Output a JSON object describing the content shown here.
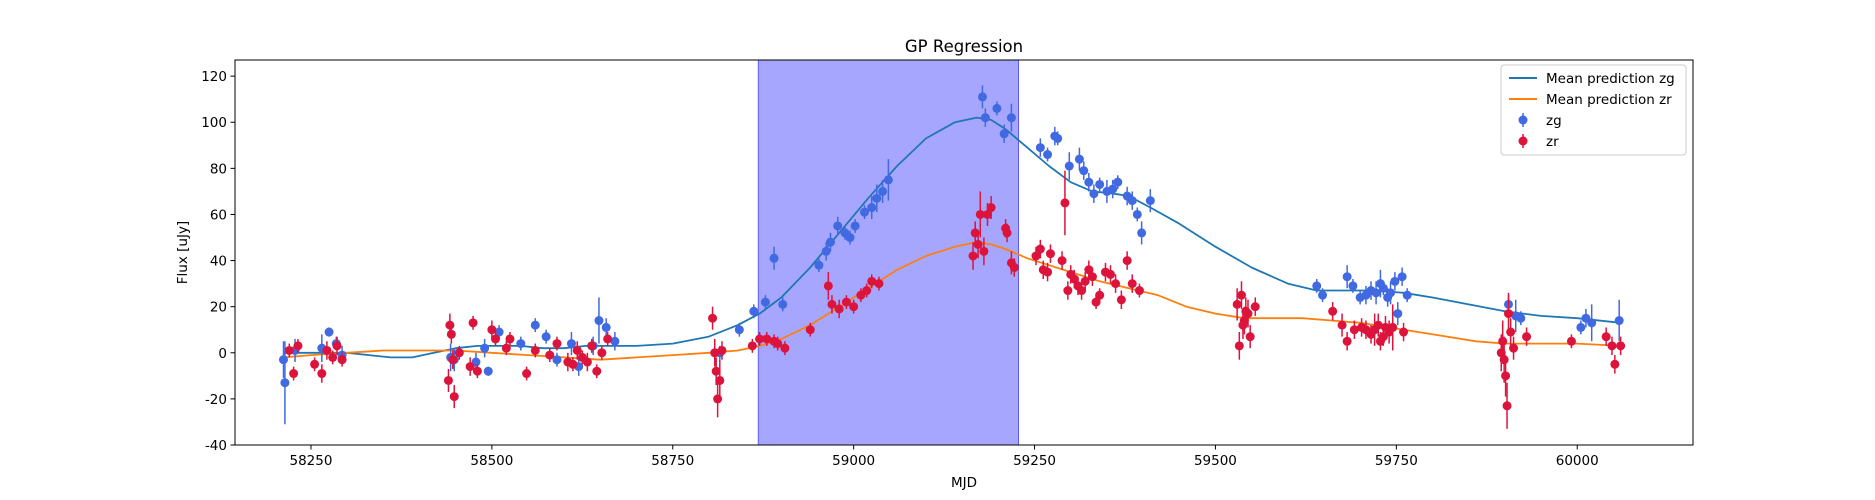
{
  "chart_data": {
    "type": "scatter",
    "title": "GP Regression",
    "xlabel": "MJD",
    "ylabel": "Flux [uJy]",
    "xlim": [
      58145,
      60160
    ],
    "ylim": [
      -40,
      127
    ],
    "xticks": [
      58250,
      58500,
      58750,
      59000,
      59250,
      59500,
      59750,
      60000
    ],
    "yticks": [
      -40,
      -20,
      0,
      20,
      40,
      60,
      80,
      100,
      120
    ],
    "grid": false,
    "legend_position": "top-right",
    "shaded_region": {
      "x0": 58868,
      "x1": 59228,
      "color": "#a6a6ff"
    },
    "colors": {
      "zg_line": "#1f77b4",
      "zr_line": "#ff7f0e",
      "zg_points": "#4169e1",
      "zr_points": "#dc143c"
    },
    "series": [
      {
        "name": "Mean prediction zg",
        "kind": "line",
        "x": [
          58212,
          58240,
          58270,
          58300,
          58330,
          58360,
          58390,
          58420,
          58450,
          58480,
          58510,
          58540,
          58570,
          58600,
          58630,
          58660,
          58700,
          58750,
          58800,
          58840,
          58870,
          58900,
          58940,
          58980,
          59020,
          59060,
          59100,
          59140,
          59170,
          59190,
          59210,
          59240,
          59270,
          59300,
          59330,
          59360,
          59380,
          59410,
          59450,
          59500,
          59550,
          59600,
          59640,
          59680,
          59720,
          59760,
          59800,
          59850,
          59900,
          59950,
          60000,
          60060
        ],
        "y": [
          0,
          0,
          0,
          0,
          -1,
          -2,
          -2,
          0,
          2,
          3,
          3,
          3,
          2,
          2,
          3,
          3,
          3,
          4,
          7,
          12,
          17,
          24,
          37,
          52,
          67,
          81,
          93,
          100,
          102,
          101,
          97,
          89,
          81,
          74,
          70,
          69,
          68,
          63,
          56,
          46,
          37,
          30,
          27,
          27,
          27,
          26,
          24,
          21,
          18,
          16,
          15,
          13
        ]
      },
      {
        "name": "Mean prediction zr",
        "kind": "line",
        "x": [
          58212,
          58250,
          58300,
          58350,
          58400,
          58450,
          58500,
          58550,
          58600,
          58650,
          58700,
          58750,
          58800,
          58840,
          58870,
          58900,
          58940,
          58980,
          59020,
          59060,
          59100,
          59140,
          59170,
          59190,
          59210,
          59240,
          59270,
          59300,
          59340,
          59380,
          59420,
          59460,
          59500,
          59540,
          59580,
          59620,
          59660,
          59700,
          59740,
          59780,
          59820,
          59860,
          59900,
          59950,
          60000,
          60060
        ],
        "y": [
          -2,
          -1,
          0,
          1,
          1,
          1,
          0,
          -1,
          -2,
          -3,
          -2,
          -1,
          0,
          1,
          3,
          6,
          12,
          20,
          28,
          36,
          42,
          46,
          48,
          47,
          45,
          41,
          38,
          35,
          31,
          28,
          25,
          20,
          17,
          15,
          15,
          15,
          14,
          13,
          11,
          9,
          7,
          5,
          4,
          4,
          4,
          3
        ]
      },
      {
        "name": "zg",
        "kind": "errorbar",
        "x": [
          58212,
          58214,
          58228,
          58265,
          58275,
          58285,
          58293,
          58443,
          58448,
          58478,
          58490,
          58495,
          58510,
          58540,
          58560,
          58575,
          58590,
          58610,
          58620,
          58640,
          58648,
          58658,
          58670,
          58815,
          58842,
          58862,
          58878,
          58890,
          58902,
          58952,
          58962,
          58968,
          58978,
          58988,
          58995,
          59002,
          59015,
          59025,
          59032,
          59040,
          59048,
          59178,
          59182,
          59198,
          59208,
          59218,
          59258,
          59268,
          59278,
          59282,
          59298,
          59312,
          59318,
          59325,
          59332,
          59340,
          59350,
          59358,
          59365,
          59378,
          59385,
          59392,
          59398,
          59410,
          59640,
          59648,
          59682,
          59690,
          59700,
          59708,
          59715,
          59722,
          59728,
          59732,
          59738,
          59742,
          59748,
          59752,
          59758,
          59765,
          59905,
          59915,
          59922,
          60005,
          60012,
          60020,
          60058
        ],
        "y": [
          -3,
          -13,
          1,
          2,
          9,
          4,
          -1,
          -2,
          -3,
          -4,
          2,
          -8,
          9,
          4,
          12,
          7,
          -3,
          4,
          -6,
          3,
          14,
          11,
          5,
          0,
          10,
          18,
          22,
          41,
          21,
          38,
          44,
          48,
          55,
          52,
          50,
          55,
          61,
          63,
          67,
          70,
          75,
          111,
          102,
          106,
          95,
          102,
          89,
          86,
          94,
          93,
          81,
          84,
          79,
          74,
          69,
          73,
          70,
          71,
          74,
          68,
          66,
          60,
          52,
          66,
          29,
          25,
          33,
          29,
          24,
          25,
          27,
          26,
          30,
          28,
          24,
          26,
          31,
          17,
          33,
          25,
          21,
          16,
          15,
          11,
          15,
          13,
          14
        ],
        "yerr": [
          8,
          18,
          5,
          6,
          2,
          3,
          4,
          6,
          5,
          4,
          4,
          2,
          3,
          3,
          3,
          3,
          3,
          5,
          4,
          4,
          10,
          4,
          4,
          3,
          3,
          3,
          3,
          5,
          3,
          3,
          4,
          4,
          4,
          3,
          3,
          3,
          3,
          5,
          6,
          5,
          9,
          5,
          4,
          3,
          4,
          6,
          4,
          3,
          4,
          3,
          6,
          5,
          4,
          4,
          4,
          3,
          5,
          4,
          3,
          4,
          4,
          3,
          5,
          5,
          3,
          3,
          5,
          3,
          3,
          4,
          4,
          5,
          6,
          3,
          4,
          5,
          4,
          5,
          4,
          3,
          4,
          7,
          3,
          3,
          4,
          8,
          9
        ]
      },
      {
        "name": "zr",
        "kind": "errorbar",
        "x": [
          58220,
          58226,
          58232,
          58255,
          58265,
          58272,
          58280,
          58286,
          58293,
          58440,
          58442,
          58444,
          58446,
          58448,
          58455,
          58470,
          58474,
          58480,
          58500,
          58505,
          58520,
          58525,
          58548,
          58560,
          58580,
          58590,
          58605,
          58612,
          58618,
          58625,
          58632,
          58638,
          58645,
          58652,
          58660,
          58805,
          58808,
          58810,
          58812,
          58815,
          58818,
          58860,
          58870,
          58880,
          58890,
          58895,
          58905,
          58940,
          58965,
          58970,
          58980,
          58990,
          59000,
          59010,
          59018,
          59025,
          59035,
          59165,
          59168,
          59172,
          59175,
          59180,
          59185,
          59190,
          59210,
          59212,
          59218,
          59222,
          59252,
          59258,
          59262,
          59268,
          59272,
          59288,
          59292,
          59296,
          59300,
          59305,
          59310,
          59315,
          59320,
          59325,
          59330,
          59335,
          59340,
          59348,
          59355,
          59362,
          59370,
          59378,
          59385,
          59395,
          59530,
          59533,
          59536,
          59538,
          59540,
          59542,
          59545,
          59548,
          59555,
          59662,
          59675,
          59682,
          59692,
          59702,
          59708,
          59715,
          59720,
          59725,
          59728,
          59732,
          59735,
          59740,
          59745,
          59760,
          59895,
          59897,
          59899,
          59901,
          59903,
          59905,
          59908,
          59912,
          59930,
          59992,
          60040,
          60048,
          60052,
          60060
        ],
        "y": [
          1,
          -9,
          3,
          -5,
          -9,
          1,
          -2,
          3,
          -3,
          -12,
          12,
          8,
          -3,
          -19,
          0,
          -6,
          13,
          -8,
          10,
          6,
          2,
          6,
          -9,
          1,
          -1,
          4,
          -4,
          -5,
          1,
          -2,
          -4,
          3,
          -8,
          0,
          6,
          15,
          0,
          -8,
          -20,
          -12,
          1,
          3,
          6,
          6,
          5,
          4,
          2,
          10,
          29,
          21,
          19,
          22,
          20,
          25,
          27,
          31,
          30,
          42,
          52,
          47,
          60,
          44,
          60,
          63,
          54,
          52,
          39,
          37,
          42,
          45,
          36,
          35,
          43,
          40,
          65,
          27,
          34,
          32,
          29,
          27,
          31,
          36,
          33,
          22,
          25,
          35,
          34,
          30,
          23,
          40,
          30,
          27,
          21,
          3,
          25,
          12,
          14,
          18,
          17,
          7,
          20,
          18,
          12,
          5,
          10,
          11,
          10,
          8,
          10,
          12,
          5,
          7,
          11,
          9,
          11,
          9,
          0,
          5,
          -3,
          -10,
          -23,
          17,
          9,
          2,
          7,
          5,
          7,
          3,
          -5,
          3
        ],
        "yerr": [
          3,
          3,
          3,
          3,
          4,
          4,
          3,
          4,
          3,
          5,
          5,
          4,
          4,
          5,
          3,
          4,
          3,
          3,
          4,
          3,
          3,
          3,
          3,
          3,
          3,
          3,
          4,
          3,
          4,
          3,
          4,
          3,
          3,
          3,
          3,
          5,
          6,
          6,
          8,
          9,
          4,
          3,
          3,
          3,
          3,
          3,
          3,
          3,
          6,
          4,
          4,
          3,
          3,
          3,
          3,
          3,
          3,
          6,
          5,
          6,
          10,
          6,
          5,
          5,
          4,
          4,
          5,
          4,
          4,
          4,
          4,
          4,
          4,
          4,
          14,
          4,
          4,
          4,
          4,
          4,
          4,
          4,
          4,
          3,
          3,
          4,
          4,
          4,
          4,
          4,
          4,
          3,
          7,
          6,
          6,
          6,
          6,
          6,
          6,
          5,
          4,
          4,
          5,
          4,
          4,
          4,
          4,
          4,
          7,
          5,
          4,
          4,
          5,
          5,
          10,
          4,
          8,
          9,
          10,
          9,
          10,
          9,
          6,
          5,
          4,
          3,
          4,
          4,
          4,
          4
        ]
      }
    ]
  }
}
